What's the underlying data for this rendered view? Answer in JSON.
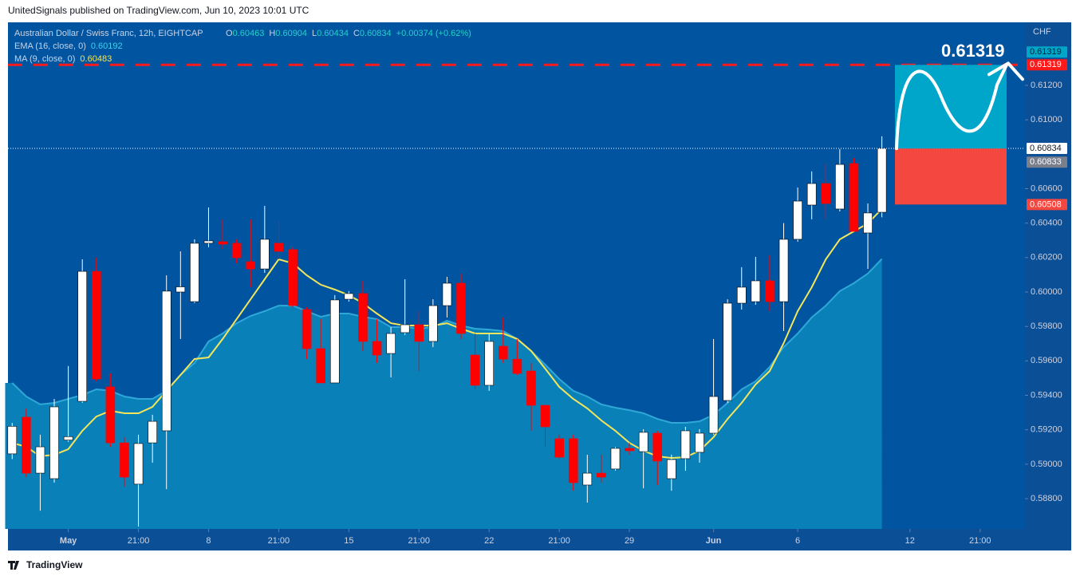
{
  "header": {
    "published": "UnitedSignals published on TradingView.com, Jun 10, 2023 10:01 UTC"
  },
  "footer": {
    "brand": "TradingView"
  },
  "chart_data": {
    "type": "candlestick",
    "title": "Australian Dollar / Swiss Franc, 12h, EIGHTCAP",
    "ohlc_labels": [
      "O",
      "H",
      "L",
      "C"
    ],
    "change": "+0.00374 (+0.62%)",
    "currency": "CHF",
    "up_color": "#ffffff",
    "down_color": "#ff0000",
    "open": [
      0.5906,
      0.59273,
      0.58948,
      0.58916,
      0.5914,
      0.59365,
      0.6012,
      0.59449,
      0.59124,
      0.58884,
      0.59124,
      0.59194,
      0.6,
      0.59944,
      0.60283,
      0.60292,
      0.60283,
      0.60176,
      0.60134,
      0.60283,
      0.60246,
      0.59898,
      0.59671,
      0.59472,
      0.59958,
      0.59991,
      0.59713,
      0.59643,
      0.59764,
      0.5981,
      0.59713,
      0.59921,
      0.60051,
      0.59634,
      0.59458,
      0.59685,
      0.5961,
      0.59541,
      0.59342,
      0.59148,
      0.59148,
      0.58879,
      0.58948,
      0.58972,
      0.59092,
      0.59073,
      0.5918,
      0.58916,
      0.59032,
      0.59069,
      0.5918,
      0.5937,
      0.59935,
      0.59944,
      0.60065,
      0.59944,
      0.60306,
      0.60505,
      0.6063,
      0.60482,
      0.60746,
      0.60343,
      0.60463
    ],
    "high": [
      0.5924,
      0.59323,
      0.59171,
      0.59379,
      0.5957,
      0.6019,
      0.60199,
      0.59527,
      0.59157,
      0.59171,
      0.59287,
      0.60097,
      0.60236,
      0.60306,
      0.60491,
      0.60422,
      0.60306,
      0.60422,
      0.605,
      0.60412,
      0.6026,
      0.59912,
      0.59843,
      0.59982,
      0.60005,
      0.60065,
      0.59843,
      0.59796,
      0.60074,
      0.59889,
      0.59958,
      0.60088,
      0.60107,
      0.59759,
      0.59759,
      0.59852,
      0.59727,
      0.59588,
      0.59342,
      0.59171,
      0.59171,
      0.59055,
      0.59055,
      0.59101,
      0.59124,
      0.59203,
      0.59194,
      0.59055,
      0.59217,
      0.59203,
      0.59727,
      0.59958,
      0.60144,
      0.60204,
      0.60213,
      0.604,
      0.60607,
      0.607,
      0.60746,
      0.60829,
      0.60778,
      0.60514,
      0.60904
    ],
    "low": [
      0.5903,
      0.58925,
      0.5873,
      0.58893,
      0.5913,
      0.59356,
      0.59481,
      0.59101,
      0.5887,
      0.58638,
      0.59009,
      0.58855,
      0.59727,
      0.59935,
      0.6026,
      0.6025,
      0.60167,
      0.60028,
      0.60111,
      0.6019,
      0.59912,
      0.59611,
      0.59472,
      0.59472,
      0.59944,
      0.59657,
      0.59588,
      0.59504,
      0.5975,
      0.59541,
      0.5968,
      0.59852,
      0.59727,
      0.59435,
      0.59426,
      0.59588,
      0.59518,
      0.59194,
      0.59101,
      0.59032,
      0.58846,
      0.58777,
      0.58893,
      0.58962,
      0.59055,
      0.5886,
      0.58879,
      0.58846,
      0.58962,
      0.59009,
      0.59171,
      0.59356,
      0.59898,
      0.59926,
      0.59889,
      0.59773,
      0.60292,
      0.60422,
      0.60422,
      0.60468,
      0.60352,
      0.60134,
      0.60434
    ],
    "close": [
      0.5922,
      0.58948,
      0.59101,
      0.59333,
      0.5916,
      0.6012,
      0.59495,
      0.59124,
      0.58925,
      0.5912,
      0.59249,
      0.60005,
      0.6003,
      0.60283,
      0.60297,
      0.60278,
      0.60199,
      0.60134,
      0.60306,
      0.60236,
      0.59921,
      0.59671,
      0.59472,
      0.59954,
      0.59991,
      0.59713,
      0.59634,
      0.59759,
      0.5981,
      0.59713,
      0.59921,
      0.60051,
      0.59759,
      0.59458,
      0.59713,
      0.5961,
      0.59527,
      0.59342,
      0.59217,
      0.59041,
      0.58893,
      0.58948,
      0.58925,
      0.59092,
      0.59078,
      0.59185,
      0.59018,
      0.59027,
      0.59194,
      0.5918,
      0.59393,
      0.59935,
      0.60028,
      0.60065,
      0.59944,
      0.60306,
      0.60528,
      0.6063,
      0.60514,
      0.60741,
      0.60352,
      0.60459,
      0.60834
    ],
    "indicators": [
      {
        "name": "EMA (16, close, 0)",
        "color": "#2fa8d8",
        "fill": "#0a80b9",
        "values": [
          0.59472,
          0.59393,
          0.59347,
          0.59356,
          0.59379,
          0.59402,
          0.59435,
          0.59426,
          0.59393,
          0.59379,
          0.59379,
          0.59426,
          0.59518,
          0.59588,
          0.59713,
          0.59759,
          0.59819,
          0.59861,
          0.59889,
          0.59921,
          0.59921,
          0.59889,
          0.59856,
          0.59875,
          0.59875,
          0.59856,
          0.59843,
          0.59796,
          0.59796,
          0.59787,
          0.59796,
          0.59833,
          0.59805,
          0.59787,
          0.59782,
          0.59773,
          0.59727,
          0.59657,
          0.59578,
          0.59495,
          0.59426,
          0.59393,
          0.59347,
          0.59328,
          0.59314,
          0.59296,
          0.59263,
          0.5924,
          0.5924,
          0.59249,
          0.59287,
          0.59356,
          0.59435,
          0.59481,
          0.59565,
          0.5968,
          0.59759,
          0.59852,
          0.59921,
          0.60005,
          0.60051,
          0.60107,
          0.60192
        ]
      },
      {
        "name": "MA (9, close, 0)",
        "color": "#f4e65a",
        "values": [
          0.59124,
          0.59101,
          0.59046,
          0.59055,
          0.59087,
          0.59194,
          0.59277,
          0.5931,
          0.59296,
          0.59296,
          0.59333,
          0.59426,
          0.59518,
          0.59611,
          0.5962,
          0.59727,
          0.59843,
          0.59958,
          0.60074,
          0.6019,
          0.60167,
          0.60097,
          0.60042,
          0.60014,
          0.59982,
          0.59935,
          0.59875,
          0.59819,
          0.59805,
          0.59805,
          0.59805,
          0.59819,
          0.59787,
          0.59759,
          0.59759,
          0.59759,
          0.59727,
          0.59657,
          0.59555,
          0.59449,
          0.59379,
          0.59324,
          0.59254,
          0.59194,
          0.59124,
          0.59078,
          0.59046,
          0.59036,
          0.59041,
          0.59078,
          0.59157,
          0.59263,
          0.59356,
          0.59463,
          0.59541,
          0.59703,
          0.59889,
          0.60028,
          0.6019,
          0.60306,
          0.60352,
          0.60398,
          0.60483
        ]
      }
    ],
    "hline": {
      "value": 0.61319,
      "color": "#ff1a1a"
    },
    "position": {
      "target": 0.61319,
      "entry": 0.60833,
      "stop": 0.60508,
      "target_color": "#00a6c9",
      "stop_color": "#f4473f"
    },
    "xlim": [
      -0.3,
      72.2
    ],
    "ylim": [
      0.58624,
      0.61566
    ],
    "xticks": [
      {
        "value": 4,
        "label": "May"
      },
      {
        "value": 9,
        "label": "21:00"
      },
      {
        "value": 14,
        "label": "8"
      },
      {
        "value": 19,
        "label": "21:00"
      },
      {
        "value": 24,
        "label": "15"
      },
      {
        "value": 29,
        "label": "21:00"
      },
      {
        "value": 34,
        "label": "22"
      },
      {
        "value": 39,
        "label": "21:00"
      },
      {
        "value": 44,
        "label": "29"
      },
      {
        "value": 50,
        "label": "Jun"
      },
      {
        "value": 56,
        "label": "6"
      },
      {
        "value": 64,
        "label": "12"
      },
      {
        "value": 69,
        "label": "21:00"
      }
    ],
    "yticks": [
      {
        "value": 0.588,
        "label": "0.58800"
      },
      {
        "value": 0.59,
        "label": "0.59000"
      },
      {
        "value": 0.592,
        "label": "0.59200"
      },
      {
        "value": 0.594,
        "label": "0.59400"
      },
      {
        "value": 0.596,
        "label": "0.59600"
      },
      {
        "value": 0.598,
        "label": "0.59800"
      },
      {
        "value": 0.6,
        "label": "0.60000"
      },
      {
        "value": 0.602,
        "label": "0.60200"
      },
      {
        "value": 0.604,
        "label": "0.60400"
      },
      {
        "value": 0.606,
        "label": "0.60600"
      },
      {
        "value": 0.61,
        "label": "0.61000"
      },
      {
        "value": 0.612,
        "label": "0.61200"
      }
    ],
    "grid": false
  }
}
